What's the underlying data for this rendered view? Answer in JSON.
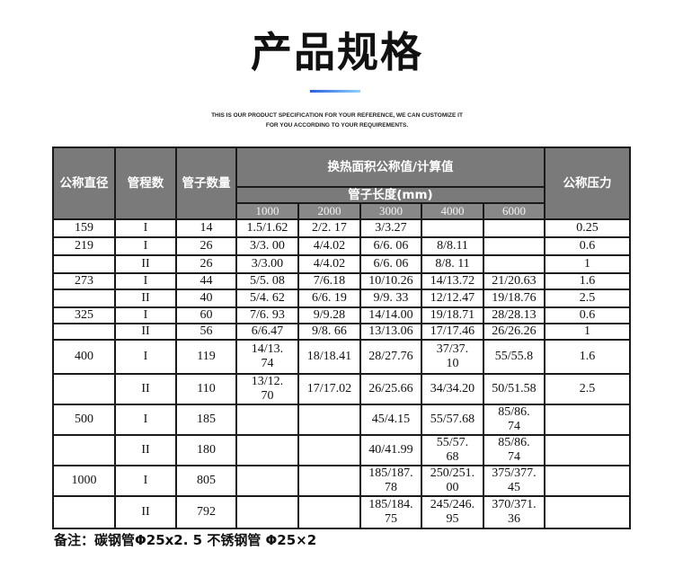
{
  "title": "产品规格",
  "subtitle_line1": "THIS IS OUR PRODUCT SPECIFICATION FOR YOUR REFERENCE,  WE CAN CUSTOMIZE IT",
  "subtitle_line2": "FOR YOU ACCORDING TO YOUR REQUIREMENTS.",
  "accent_color": "#2f5fe0",
  "table": {
    "headers": {
      "diameter": "公称直径",
      "passes": "管程数",
      "tube_count": "管子数量",
      "area": "换热面积公称值/计算值",
      "tube_length": "管子长度(mm)",
      "pressure": "公称压力",
      "lengths": [
        "1000",
        "2000",
        "3000",
        "4000",
        "6000"
      ]
    },
    "rows": [
      [
        "159",
        "I",
        "14",
        "1.5/1.62",
        "2/2. 17",
        "3/3.27",
        "",
        "",
        "0.25"
      ],
      [
        "219",
        "I",
        "26",
        "3/3. 00",
        "4/4.02",
        "6/6. 06",
        "8/8.11",
        "",
        "0.6"
      ],
      [
        "",
        "II",
        "26",
        "3/3.00",
        "4/4.02",
        "6/6. 06",
        "8/8. 11",
        "",
        "1"
      ],
      [
        "273",
        "I",
        "44",
        "5/5. 08",
        "7/6.18",
        "10/10.26",
        "14/13.72",
        "21/20.63",
        "1.6"
      ],
      [
        "",
        "II",
        "40",
        "5/4. 62",
        "6/6. 19",
        "9/9. 33",
        "12/12.47",
        "19/18.76",
        "2.5"
      ],
      [
        "325",
        "I",
        "60",
        "7/6. 93",
        "9/9.28",
        "14/14.00",
        "19/18.71",
        "28/28.13",
        "0.6"
      ],
      [
        "",
        "II",
        "56",
        "6/6.47",
        "9/8. 66",
        "13/13.06",
        "17/17.46",
        "26/26.26",
        "1"
      ],
      [
        "400",
        "I",
        "119",
        "14/13.\n74",
        "18/18.41",
        "28/27.76",
        "37/37.\n10",
        "55/55.8",
        "1.6"
      ],
      [
        "",
        "II",
        "110",
        "13/12.\n70",
        "17/17.02",
        "26/25.66",
        "34/34.20",
        "50/51.58",
        "2.5"
      ],
      [
        "500",
        "I",
        "185",
        "",
        "",
        "45/4.15",
        "55/57.68",
        "85/86.\n74",
        ""
      ],
      [
        "",
        "II",
        "180",
        "",
        "",
        "40/41.99",
        "55/57.\n68",
        "85/86.\n74",
        ""
      ],
      [
        "1000",
        "I",
        "805",
        "",
        "",
        "185/187.\n78",
        "250/251.\n00",
        "375/377.\n45",
        ""
      ],
      [
        "",
        "II",
        "792",
        "",
        "",
        "185/184.\n75",
        "245/246.\n95",
        "370/371.\n36",
        ""
      ]
    ]
  },
  "note": "备注：碳钢管Φ25x2. 5 不锈钢管  Φ25×2"
}
